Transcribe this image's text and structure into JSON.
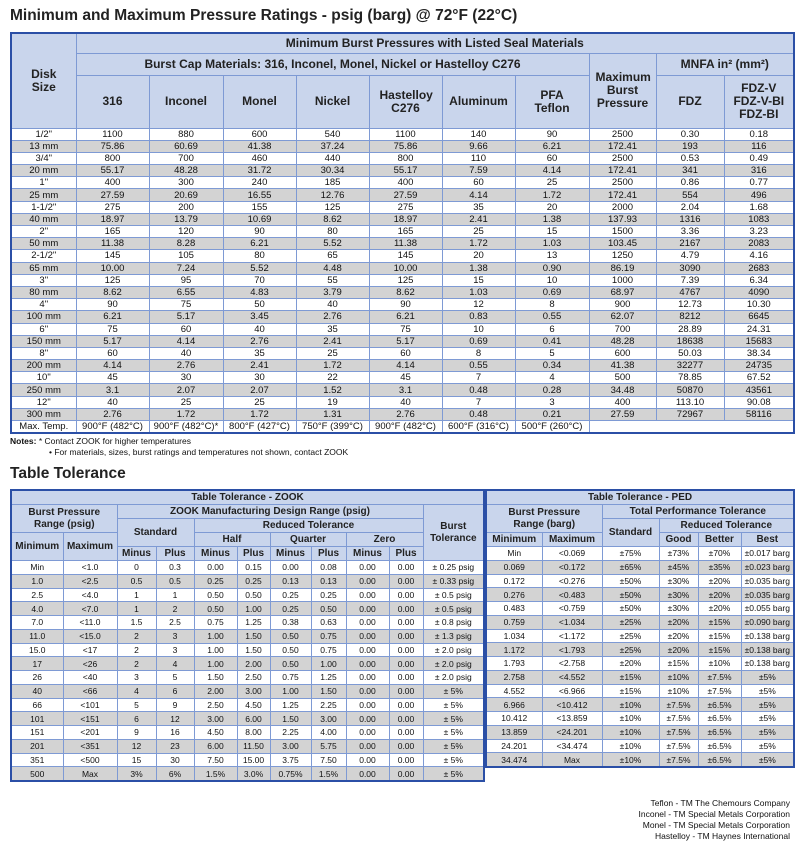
{
  "title": "Minimum and Maximum Pressure Ratings - psig (barg) @ 72°F (22°C)",
  "ratings": {
    "disk_size": "Disk Size",
    "min_burst": "Minimum Burst Pressures with Listed Seal Materials",
    "cap_materials": "Burst Cap Materials: 316, Inconel, Monel, Nickel or Hastelloy C276",
    "max_burst": "Maximum Burst Pressure",
    "mnfa": "MNFA in² (mm²)",
    "cols": [
      "316",
      "Inconel",
      "Monel",
      "Nickel",
      "Hastelloy C276",
      "Aluminum",
      "PFA Teflon"
    ],
    "mnfa_cols": [
      "FDZ",
      "FDZ-V FDZ-V-BI FDZ-BI"
    ],
    "rows": [
      [
        "1/2\"",
        "1100",
        "880",
        "600",
        "540",
        "1100",
        "140",
        "90",
        "2500",
        "0.30",
        "0.18"
      ],
      [
        "13 mm",
        "75.86",
        "60.69",
        "41.38",
        "37.24",
        "75.86",
        "9.66",
        "6.21",
        "172.41",
        "193",
        "116"
      ],
      [
        "3/4\"",
        "800",
        "700",
        "460",
        "440",
        "800",
        "110",
        "60",
        "2500",
        "0.53",
        "0.49"
      ],
      [
        "20 mm",
        "55.17",
        "48.28",
        "31.72",
        "30.34",
        "55.17",
        "7.59",
        "4.14",
        "172.41",
        "341",
        "316"
      ],
      [
        "1\"",
        "400",
        "300",
        "240",
        "185",
        "400",
        "60",
        "25",
        "2500",
        "0.86",
        "0.77"
      ],
      [
        "25 mm",
        "27.59",
        "20.69",
        "16.55",
        "12.76",
        "27.59",
        "4.14",
        "1.72",
        "172.41",
        "554",
        "496"
      ],
      [
        "1-1/2\"",
        "275",
        "200",
        "155",
        "125",
        "275",
        "35",
        "20",
        "2000",
        "2.04",
        "1.68"
      ],
      [
        "40 mm",
        "18.97",
        "13.79",
        "10.69",
        "8.62",
        "18.97",
        "2.41",
        "1.38",
        "137.93",
        "1316",
        "1083"
      ],
      [
        "2\"",
        "165",
        "120",
        "90",
        "80",
        "165",
        "25",
        "15",
        "1500",
        "3.36",
        "3.23"
      ],
      [
        "50 mm",
        "11.38",
        "8.28",
        "6.21",
        "5.52",
        "11.38",
        "1.72",
        "1.03",
        "103.45",
        "2167",
        "2083"
      ],
      [
        "2-1/2\"",
        "145",
        "105",
        "80",
        "65",
        "145",
        "20",
        "13",
        "1250",
        "4.79",
        "4.16"
      ],
      [
        "65 mm",
        "10.00",
        "7.24",
        "5.52",
        "4.48",
        "10.00",
        "1.38",
        "0.90",
        "86.19",
        "3090",
        "2683"
      ],
      [
        "3\"",
        "125",
        "95",
        "70",
        "55",
        "125",
        "15",
        "10",
        "1000",
        "7.39",
        "6.34"
      ],
      [
        "80 mm",
        "8.62",
        "6.55",
        "4.83",
        "3.79",
        "8.62",
        "1.03",
        "0.69",
        "68.97",
        "4767",
        "4090"
      ],
      [
        "4\"",
        "90",
        "75",
        "50",
        "40",
        "90",
        "12",
        "8",
        "900",
        "12.73",
        "10.30"
      ],
      [
        "100 mm",
        "6.21",
        "5.17",
        "3.45",
        "2.76",
        "6.21",
        "0.83",
        "0.55",
        "62.07",
        "8212",
        "6645"
      ],
      [
        "6\"",
        "75",
        "60",
        "40",
        "35",
        "75",
        "10",
        "6",
        "700",
        "28.89",
        "24.31"
      ],
      [
        "150 mm",
        "5.17",
        "4.14",
        "2.76",
        "2.41",
        "5.17",
        "0.69",
        "0.41",
        "48.28",
        "18638",
        "15683"
      ],
      [
        "8\"",
        "60",
        "40",
        "35",
        "25",
        "60",
        "8",
        "5",
        "600",
        "50.03",
        "38.34"
      ],
      [
        "200 mm",
        "4.14",
        "2.76",
        "2.41",
        "1.72",
        "4.14",
        "0.55",
        "0.34",
        "41.38",
        "32277",
        "24735"
      ],
      [
        "10\"",
        "45",
        "30",
        "30",
        "22",
        "45",
        "7",
        "4",
        "500",
        "78.85",
        "67.52"
      ],
      [
        "250 mm",
        "3.1",
        "2.07",
        "2.07",
        "1.52",
        "3.1",
        "0.48",
        "0.28",
        "34.48",
        "50870",
        "43561"
      ],
      [
        "12\"",
        "40",
        "25",
        "25",
        "19",
        "40",
        "7",
        "3",
        "400",
        "113.10",
        "90.08"
      ],
      [
        "300 mm",
        "2.76",
        "1.72",
        "1.72",
        "1.31",
        "2.76",
        "0.48",
        "0.21",
        "27.59",
        "72967",
        "58116"
      ]
    ],
    "max_temp": [
      "Max. Temp.",
      "900°F (482°C)",
      "900°F (482°C)*",
      "800°F (427°C)",
      "750°F (399°C)",
      "900°F (482°C)",
      "600°F (316°C)",
      "500°F (260°C)"
    ]
  },
  "notes": {
    "label": "Notes:",
    "line1": "* Contact ZOOK for higher temperatures",
    "line2": "• For materials, sizes, burst ratings and temperatures not shown, contact ZOOK"
  },
  "tolerance_title": "Table Tolerance",
  "zook": {
    "title": "Table Tolerance - ZOOK",
    "range": "Burst Pressure Range (psig)",
    "design": "ZOOK Manufacturing Design Range (psig)",
    "standard": "Standard",
    "reduced": "Reduced Tolerance",
    "half": "Half",
    "quarter": "Quarter",
    "zero": "Zero",
    "burst_tol": "Burst Tolerance",
    "minimum": "Minimum",
    "maximum": "Maximum",
    "minus": "Minus",
    "plus": "Plus",
    "rows": [
      [
        "Min",
        "<1.0",
        "0",
        "0.3",
        "0.00",
        "0.15",
        "0.00",
        "0.08",
        "0.00",
        "0.00",
        "± 0.25 psig"
      ],
      [
        "1.0",
        "<2.5",
        "0.5",
        "0.5",
        "0.25",
        "0.25",
        "0.13",
        "0.13",
        "0.00",
        "0.00",
        "± 0.33 psig"
      ],
      [
        "2.5",
        "<4.0",
        "1",
        "1",
        "0.50",
        "0.50",
        "0.25",
        "0.25",
        "0.00",
        "0.00",
        "± 0.5 psig"
      ],
      [
        "4.0",
        "<7.0",
        "1",
        "2",
        "0.50",
        "1.00",
        "0.25",
        "0.50",
        "0.00",
        "0.00",
        "± 0.5 psig"
      ],
      [
        "7.0",
        "<11.0",
        "1.5",
        "2.5",
        "0.75",
        "1.25",
        "0.38",
        "0.63",
        "0.00",
        "0.00",
        "± 0.8 psig"
      ],
      [
        "11.0",
        "<15.0",
        "2",
        "3",
        "1.00",
        "1.50",
        "0.50",
        "0.75",
        "0.00",
        "0.00",
        "± 1.3 psig"
      ],
      [
        "15.0",
        "<17",
        "2",
        "3",
        "1.00",
        "1.50",
        "0.50",
        "0.75",
        "0.00",
        "0.00",
        "± 2.0 psig"
      ],
      [
        "17",
        "<26",
        "2",
        "4",
        "1.00",
        "2.00",
        "0.50",
        "1.00",
        "0.00",
        "0.00",
        "± 2.0 psig"
      ],
      [
        "26",
        "<40",
        "3",
        "5",
        "1.50",
        "2.50",
        "0.75",
        "1.25",
        "0.00",
        "0.00",
        "± 2.0 psig"
      ],
      [
        "40",
        "<66",
        "4",
        "6",
        "2.00",
        "3.00",
        "1.00",
        "1.50",
        "0.00",
        "0.00",
        "± 5%"
      ],
      [
        "66",
        "<101",
        "5",
        "9",
        "2.50",
        "4.50",
        "1.25",
        "2.25",
        "0.00",
        "0.00",
        "± 5%"
      ],
      [
        "101",
        "<151",
        "6",
        "12",
        "3.00",
        "6.00",
        "1.50",
        "3.00",
        "0.00",
        "0.00",
        "± 5%"
      ],
      [
        "151",
        "<201",
        "9",
        "16",
        "4.50",
        "8.00",
        "2.25",
        "4.00",
        "0.00",
        "0.00",
        "± 5%"
      ],
      [
        "201",
        "<351",
        "12",
        "23",
        "6.00",
        "11.50",
        "3.00",
        "5.75",
        "0.00",
        "0.00",
        "± 5%"
      ],
      [
        "351",
        "<500",
        "15",
        "30",
        "7.50",
        "15.00",
        "3.75",
        "7.50",
        "0.00",
        "0.00",
        "± 5%"
      ],
      [
        "500",
        "Max",
        "3%",
        "6%",
        "1.5%",
        "3.0%",
        "0.75%",
        "1.5%",
        "0.00",
        "0.00",
        "± 5%"
      ]
    ]
  },
  "ped": {
    "title": "Table Tolerance - PED",
    "range": "Burst Pressure Range (barg)",
    "total": "Total Performance Tolerance",
    "standard": "Standard",
    "reduced": "Reduced Tolerance",
    "minimum": "Minimum",
    "maximum": "Maximum",
    "good": "Good",
    "better": "Better",
    "best": "Best",
    "rows": [
      [
        "Min",
        "<0.069",
        "±75%",
        "±73%",
        "±70%",
        "±0.017 barg"
      ],
      [
        "0.069",
        "<0.172",
        "±65%",
        "±45%",
        "±35%",
        "±0.023 barg"
      ],
      [
        "0.172",
        "<0.276",
        "±50%",
        "±30%",
        "±20%",
        "±0.035 barg"
      ],
      [
        "0.276",
        "<0.483",
        "±50%",
        "±30%",
        "±20%",
        "±0.035 barg"
      ],
      [
        "0.483",
        "<0.759",
        "±50%",
        "±30%",
        "±20%",
        "±0.055 barg"
      ],
      [
        "0.759",
        "<1.034",
        "±25%",
        "±20%",
        "±15%",
        "±0.090 barg"
      ],
      [
        "1.034",
        "<1.172",
        "±25%",
        "±20%",
        "±15%",
        "±0.138 barg"
      ],
      [
        "1.172",
        "<1.793",
        "±25%",
        "±20%",
        "±15%",
        "±0.138 barg"
      ],
      [
        "1.793",
        "<2.758",
        "±20%",
        "±15%",
        "±10%",
        "±0.138 barg"
      ],
      [
        "2.758",
        "<4.552",
        "±15%",
        "±10%",
        "±7.5%",
        "±5%"
      ],
      [
        "4.552",
        "<6.966",
        "±15%",
        "±10%",
        "±7.5%",
        "±5%"
      ],
      [
        "6.966",
        "<10.412",
        "±10%",
        "±7.5%",
        "±6.5%",
        "±5%"
      ],
      [
        "10.412",
        "<13.859",
        "±10%",
        "±7.5%",
        "±6.5%",
        "±5%"
      ],
      [
        "13.859",
        "<24.201",
        "±10%",
        "±7.5%",
        "±6.5%",
        "±5%"
      ],
      [
        "24.201",
        "<34.474",
        "±10%",
        "±7.5%",
        "±6.5%",
        "±5%"
      ],
      [
        "34.474",
        "Max",
        "±10%",
        "±7.5%",
        "±6.5%",
        "±5%"
      ]
    ]
  },
  "trademarks": [
    "Teflon - TM The Chemours Company",
    "Inconel - TM Special Metals Corporation",
    "Monel - TM Special Metals Corporation",
    "Hastelloy - TM Haynes International"
  ]
}
